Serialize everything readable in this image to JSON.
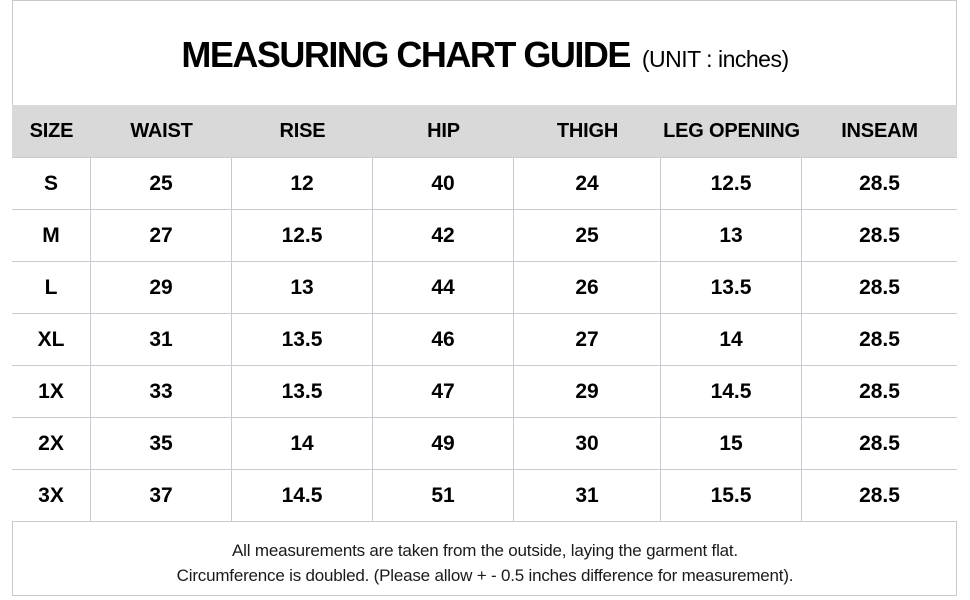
{
  "title": {
    "text": "MEASURING CHART GUIDE",
    "unit": "(UNIT : inches)"
  },
  "chart_data": {
    "type": "table",
    "title": "MEASURING CHART GUIDE",
    "unit": "inches",
    "columns": [
      "SIZE",
      "WAIST",
      "RISE",
      "HIP",
      "THIGH",
      "LEG OPENING",
      "INSEAM"
    ],
    "rows": [
      [
        "S",
        "25",
        "12",
        "40",
        "24",
        "12.5",
        "28.5"
      ],
      [
        "M",
        "27",
        "12.5",
        "42",
        "25",
        "13",
        "28.5"
      ],
      [
        "L",
        "29",
        "13",
        "44",
        "26",
        "13.5",
        "28.5"
      ],
      [
        "XL",
        "31",
        "13.5",
        "46",
        "27",
        "14",
        "28.5"
      ],
      [
        "1X",
        "33",
        "13.5",
        "47",
        "29",
        "14.5",
        "28.5"
      ],
      [
        "2X",
        "35",
        "14",
        "49",
        "30",
        "15",
        "28.5"
      ],
      [
        "3X",
        "37",
        "14.5",
        "51",
        "31",
        "15.5",
        "28.5"
      ]
    ]
  },
  "footer": {
    "line1": "All measurements are taken from the outside, laying the garment flat.",
    "line2": "Circumference is doubled. (Please allow + - 0.5 inches difference for measurement)."
  },
  "colors": {
    "header_bg": "#d9d9d9",
    "grid": "#c9c9cf",
    "text": "#000000"
  }
}
